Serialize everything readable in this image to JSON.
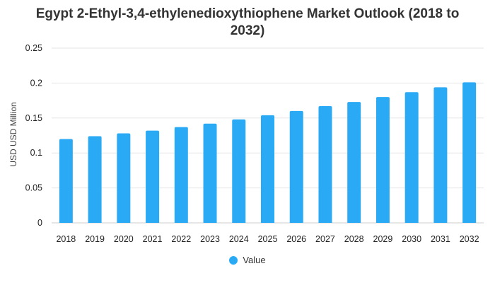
{
  "chart_data": {
    "type": "bar",
    "title": "Egypt 2-Ethyl-3,4-ethylenedioxythiophene Market Outlook (2018 to 2032)",
    "xlabel": "",
    "ylabel": "USD USD Million",
    "categories": [
      "2018",
      "2019",
      "2020",
      "2021",
      "2022",
      "2023",
      "2024",
      "2025",
      "2026",
      "2027",
      "2028",
      "2029",
      "2030",
      "2031",
      "2032"
    ],
    "series": [
      {
        "name": "Value",
        "color": "#2aaaf5",
        "values": [
          0.12,
          0.124,
          0.128,
          0.132,
          0.137,
          0.142,
          0.148,
          0.154,
          0.16,
          0.167,
          0.173,
          0.18,
          0.187,
          0.194,
          0.201
        ]
      }
    ],
    "ylim": [
      0,
      0.25
    ],
    "yticks": [
      "0",
      "0.05",
      "0.1",
      "0.15",
      "0.2",
      "0.25"
    ],
    "grid": true,
    "legend_position": "bottom-center"
  }
}
